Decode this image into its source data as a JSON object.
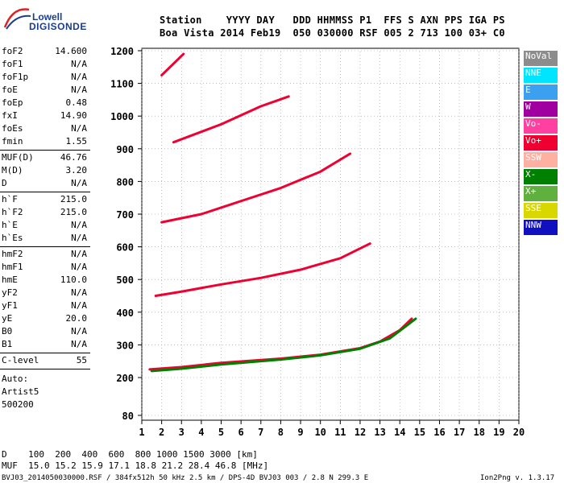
{
  "logo": {
    "line1": "Lowell",
    "line2": "DIGISONDE"
  },
  "header": {
    "row1": "Station    YYYY DAY   DDD HHMMSS P1  FFS S AXN PPS IGA PS",
    "row2": "Boa Vista 2014 Feb19  050 030000 RSF 005 2 713 100 03+ C0"
  },
  "params": [
    {
      "k": "foF2",
      "v": "14.600"
    },
    {
      "k": "foF1",
      "v": "N/A"
    },
    {
      "k": "foF1p",
      "v": "N/A"
    },
    {
      "k": "foE",
      "v": "N/A"
    },
    {
      "k": "foEp",
      "v": "0.48"
    },
    {
      "k": "fxI",
      "v": "14.90"
    },
    {
      "k": "foEs",
      "v": "N/A"
    },
    {
      "k": "fmin",
      "v": "1.55"
    },
    {
      "k": "MUF(D)",
      "v": "46.76",
      "sep": true
    },
    {
      "k": "M(D)",
      "v": "3.20"
    },
    {
      "k": "D",
      "v": "N/A"
    },
    {
      "k": "h`F",
      "v": "215.0",
      "sep": true
    },
    {
      "k": "h`F2",
      "v": "215.0"
    },
    {
      "k": "h`E",
      "v": "N/A"
    },
    {
      "k": "h`Es",
      "v": "N/A"
    },
    {
      "k": "hmF2",
      "v": "N/A",
      "sep": true
    },
    {
      "k": "hmF1",
      "v": "N/A"
    },
    {
      "k": "hmE",
      "v": "110.0"
    },
    {
      "k": "yF2",
      "v": "N/A"
    },
    {
      "k": "yF1",
      "v": "N/A"
    },
    {
      "k": "yE",
      "v": "20.0"
    },
    {
      "k": "B0",
      "v": "N/A"
    },
    {
      "k": "B1",
      "v": "N/A"
    },
    {
      "k": "C-level",
      "v": "55",
      "sep": true
    }
  ],
  "auto": [
    "Auto:",
    "Artist5",
    "500200"
  ],
  "legend": [
    {
      "label": "NoVal",
      "color": "#8c8c8c"
    },
    {
      "label": "NNE",
      "color": "#00e5ff"
    },
    {
      "label": "E",
      "color": "#3ca0f0"
    },
    {
      "label": "W",
      "color": "#a000a0"
    },
    {
      "label": "Vo-",
      "color": "#ff40a0"
    },
    {
      "label": "Vo+",
      "color": "#f00030"
    },
    {
      "label": "SSW",
      "color": "#ffb0a0"
    },
    {
      "label": "X-",
      "color": "#008000"
    },
    {
      "label": "X+",
      "color": "#60b040"
    },
    {
      "label": "SSE",
      "color": "#d8d800"
    },
    {
      "label": "NNW",
      "color": "#1010c0"
    }
  ],
  "footer": {
    "d_row": "D    100  200  400  600  800 1000 1500 3000 [km]",
    "muf_row": "MUF  15.0 15.2 15.9 17.1 18.8 21.2 28.4 46.8 [MHz]",
    "file": "BVJ03_2014050030000.RSF / 384fx512h 50 kHz 2.5 km / DPS-4D BVJ03 003 / 2.8 N 299.3 E",
    "version": "Ion2Png v. 1.3.17"
  },
  "chart_data": {
    "type": "scatter",
    "x_ticks": [
      "1",
      "2",
      "3",
      "4",
      "5",
      "6",
      "7",
      "8",
      "9",
      "10",
      "11",
      "12",
      "13",
      "14",
      "15",
      "16",
      "17",
      "18",
      "19",
      "20"
    ],
    "y_ticks": [
      "80",
      "200",
      "300",
      "400",
      "500",
      "600",
      "700",
      "800",
      "900",
      "1000",
      "1100",
      "1200"
    ],
    "xlim": [
      1,
      20
    ],
    "ylim": [
      80,
      1200
    ],
    "grid": "dotted",
    "traces": [
      {
        "name": "Vo+",
        "x": [
          1.4,
          3,
          5,
          8,
          10,
          12,
          13,
          14,
          14.6
        ],
        "y": [
          225,
          232,
          245,
          258,
          270,
          290,
          310,
          345,
          380
        ]
      },
      {
        "name": "Vo+",
        "x": [
          1.7,
          3,
          5,
          7,
          9,
          11,
          12.5
        ],
        "y": [
          450,
          463,
          485,
          505,
          530,
          565,
          610
        ]
      },
      {
        "name": "Vo+",
        "x": [
          2,
          4,
          6,
          8,
          10,
          11.5
        ],
        "y": [
          675,
          700,
          740,
          780,
          830,
          885
        ]
      },
      {
        "name": "Vo+",
        "x": [
          2.6,
          5,
          7,
          8.4
        ],
        "y": [
          920,
          975,
          1030,
          1060
        ]
      },
      {
        "name": "Vo+",
        "x": [
          2,
          3.1
        ],
        "y": [
          1125,
          1190
        ]
      },
      {
        "name": "X-",
        "x": [
          1.5,
          3,
          5,
          8,
          10,
          12,
          13.5,
          14.8
        ],
        "y": [
          220,
          227,
          240,
          255,
          268,
          288,
          320,
          380
        ]
      }
    ]
  }
}
